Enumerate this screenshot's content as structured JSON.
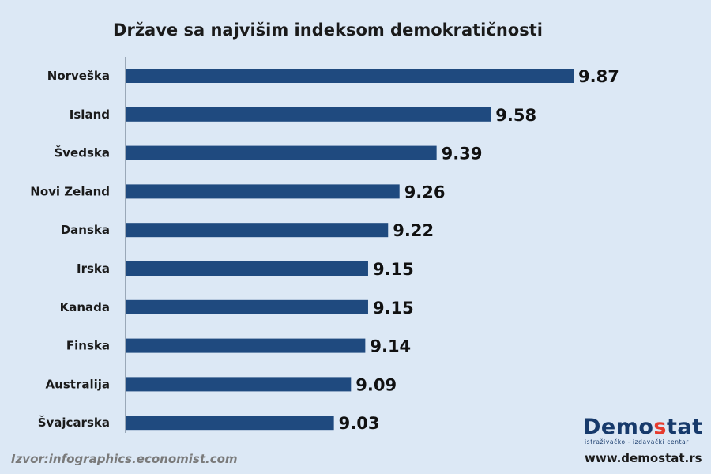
{
  "chart_data": {
    "type": "bar",
    "orientation": "horizontal",
    "title": "Države sa najvišim indeksom demokratičnosti",
    "categories": [
      "Norveška",
      "Island",
      "Švedska",
      "Novi Zeland",
      "Danska",
      "Irska",
      "Kanada",
      "Finska",
      "Australija",
      "Švajcarska"
    ],
    "values": [
      9.87,
      9.58,
      9.39,
      9.26,
      9.22,
      9.15,
      9.15,
      9.14,
      9.09,
      9.03
    ],
    "value_labels": [
      "9.87",
      "9.58",
      "9.39",
      "9.26",
      "9.22",
      "9.15",
      "9.15",
      "9.14",
      "9.09",
      "9.03"
    ],
    "bar_color": "#1f4a7f",
    "xlim": [
      8.3,
      9.87
    ],
    "grid": false,
    "legend": "none"
  },
  "footer": {
    "source": "Izvor:infographics.economist.com",
    "logo_parts": [
      "Demo",
      "s",
      "tat"
    ],
    "logo_tagline": "istraživačko - izdavački  centar",
    "website": "www.demostat.rs"
  },
  "colors": {
    "background": "#dce8f5",
    "logo_accent": "#e63b2e",
    "logo_main": "#173a6b"
  }
}
